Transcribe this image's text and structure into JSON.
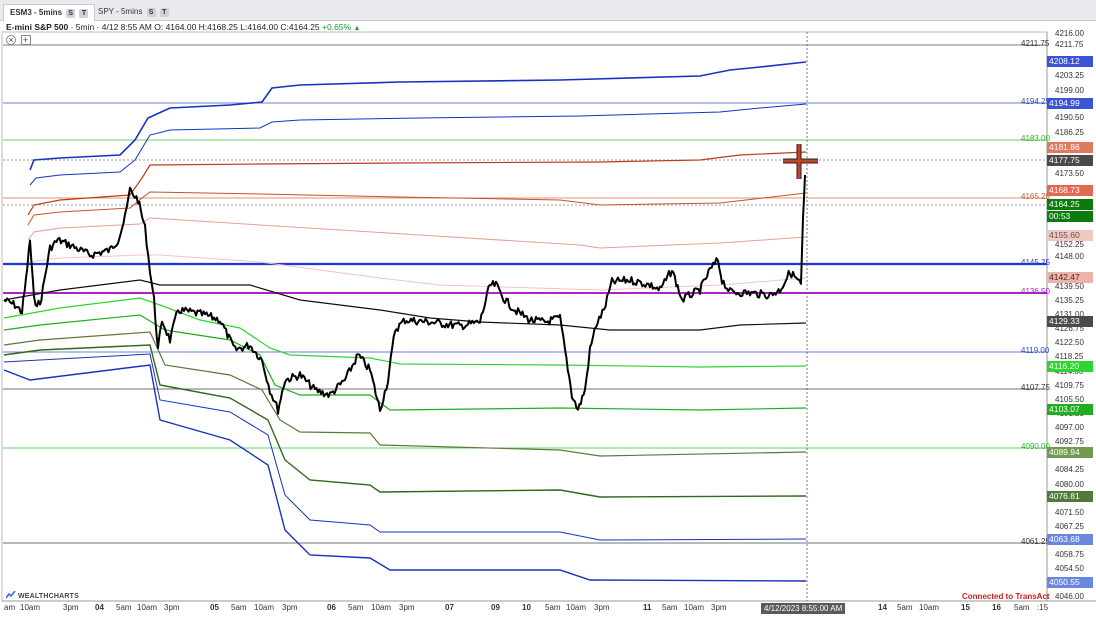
{
  "tabs": [
    {
      "label": "ESM3 - 5mins",
      "active": true
    },
    {
      "label": "SPY - 5mins",
      "active": false
    }
  ],
  "tab_buttons": [
    "S",
    "T"
  ],
  "info": {
    "title": "E-mini S&P 500",
    "interval": "· 5min ·",
    "date_time": "4/12 8:55 AM",
    "ohlc": "O: 4164.00 H:4168.25 L:4164.00 C:4164.25",
    "change": "+0.65%",
    "arrow": "▲"
  },
  "controls": {
    "close": "×",
    "add": "+"
  },
  "y_axis": {
    "labels": [
      "4216.00",
      "4211.75",
      "4203.25",
      "4199.00",
      "4190.50",
      "4186.25",
      "4173.50",
      "4152.25",
      "4148.00",
      "4139.50",
      "4135.25",
      "4131.00",
      "4126.75",
      "4122.50",
      "4118.25",
      "4114.00",
      "4109.75",
      "4105.50",
      "4101.25",
      "4097.00",
      "4092.75",
      "4088.50",
      "4084.25",
      "4080.00",
      "4075.75",
      "4071.50",
      "4067.25",
      "4058.75",
      "4054.50",
      "4046.00"
    ]
  },
  "levels": [
    {
      "value": "4211.75",
      "color": "#333333"
    },
    {
      "value": "4194.25",
      "color": "#2f4fbf"
    },
    {
      "value": "4183.00",
      "color": "#2fb52f"
    },
    {
      "value": "4165.25",
      "color": "#c25a2a"
    },
    {
      "value": "4145.25",
      "color": "#1f3fd0"
    },
    {
      "value": "4136.50",
      "color": "#a020c0"
    },
    {
      "value": "4119.00",
      "color": "#2f4fbf"
    },
    {
      "value": "4107.75",
      "color": "#333333"
    },
    {
      "value": "4090.00",
      "color": "#2fb52f"
    },
    {
      "value": "4061.25",
      "color": "#333333"
    }
  ],
  "price_tags": [
    {
      "value": "4208.12",
      "color": "#3b54d6"
    },
    {
      "value": "4194.99",
      "color": "#3b54d6"
    },
    {
      "value": "4181.86",
      "color": "#e07a5f"
    },
    {
      "value": "4177.75",
      "color": "#4a4a4a"
    },
    {
      "value": "4168.73",
      "color": "#e26a52"
    },
    {
      "value": "4164.25",
      "color": "#0c7a0c"
    },
    {
      "value": "00:53",
      "color": "#0c7a0c"
    },
    {
      "value": "4155.60",
      "color": "#f2c8c0",
      "text_color": "#555555"
    },
    {
      "value": "4142.47",
      "color": "#eeb3a6",
      "text_color": "#333333"
    },
    {
      "value": "4129.33",
      "color": "#4a4a4a"
    },
    {
      "value": "4116.20",
      "color": "#2ed52e"
    },
    {
      "value": "4103.07",
      "color": "#1fae1f"
    },
    {
      "value": "4089.94",
      "color": "#6f9a4f"
    },
    {
      "value": "4076.81",
      "color": "#4f7a3a"
    },
    {
      "value": "4063.68",
      "color": "#6a86e0"
    },
    {
      "value": "4050.55",
      "color": "#6a86e0"
    }
  ],
  "x_axis": {
    "labels": [
      {
        "text": "am",
        "bold": false
      },
      {
        "text": "10am",
        "bold": false
      },
      {
        "text": "3pm",
        "bold": false
      },
      {
        "text": "04",
        "bold": true
      },
      {
        "text": "5am",
        "bold": false
      },
      {
        "text": "10am",
        "bold": false
      },
      {
        "text": "3pm",
        "bold": false
      },
      {
        "text": "05",
        "bold": true
      },
      {
        "text": "5am",
        "bold": false
      },
      {
        "text": "10am",
        "bold": false
      },
      {
        "text": "3pm",
        "bold": false
      },
      {
        "text": "06",
        "bold": true
      },
      {
        "text": "5am",
        "bold": false
      },
      {
        "text": "10am",
        "bold": false
      },
      {
        "text": "3pm",
        "bold": false
      },
      {
        "text": "07",
        "bold": true
      },
      {
        "text": "09",
        "bold": true
      },
      {
        "text": "10",
        "bold": true
      },
      {
        "text": "5am",
        "bold": false
      },
      {
        "text": "10am",
        "bold": false
      },
      {
        "text": "3pm",
        "bold": false
      },
      {
        "text": "11",
        "bold": true
      },
      {
        "text": "5am",
        "bold": false
      },
      {
        "text": "10am",
        "bold": false
      },
      {
        "text": "3pm",
        "bold": false
      },
      {
        "text": "14",
        "bold": true
      },
      {
        "text": "5am",
        "bold": false
      },
      {
        "text": "10am",
        "bold": false
      },
      {
        "text": "15",
        "bold": true
      },
      {
        "text": "16",
        "bold": true
      },
      {
        "text": "5am",
        "bold": false
      },
      {
        "text": ":15",
        "bold": false
      }
    ],
    "cursor_label": "4/12/2023 8:55:00 AM"
  },
  "branding": {
    "logo": "WEALTHCHARTS"
  },
  "status": {
    "connected": "Connected to TransAct"
  }
}
